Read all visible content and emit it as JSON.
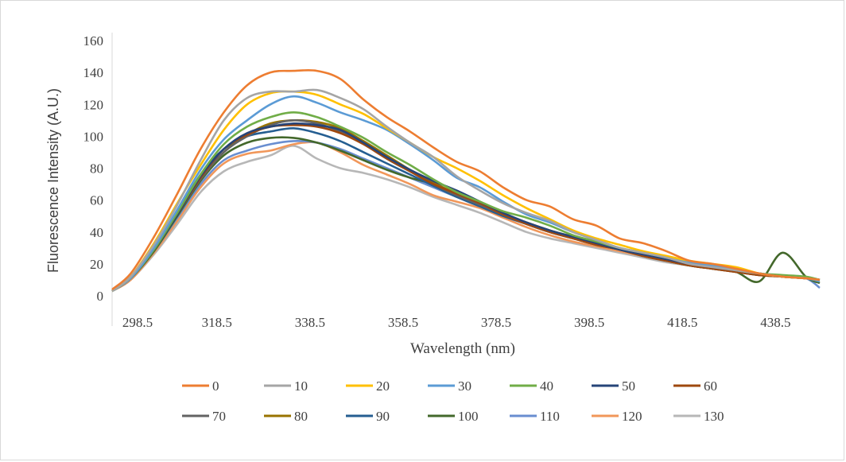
{
  "chart_data": {
    "type": "line",
    "title": "",
    "xlabel": "Wavelength (nm)",
    "ylabel": "Fluorescence  Intensity (A.U.)",
    "xlim": [
      296,
      448
    ],
    "ylim": [
      0,
      160
    ],
    "yticks": [
      "0",
      "20",
      "40",
      "60",
      "80",
      "100",
      "120",
      "140",
      "160"
    ],
    "xticks": [
      "298.5",
      "318.5",
      "338.5",
      "358.5",
      "378.5",
      "398.5",
      "418.5",
      "438.5"
    ],
    "grid": false,
    "legend_position": "bottom",
    "x": [
      296,
      300,
      305,
      310,
      315,
      320,
      325,
      330,
      335,
      340,
      345,
      350,
      355,
      360,
      365,
      370,
      375,
      380,
      385,
      390,
      395,
      400,
      405,
      410,
      415,
      420,
      425,
      430,
      435,
      440,
      445,
      448
    ],
    "series": [
      {
        "name": "0",
        "color": "#ED7D31",
        "values": [
          4,
          14,
          37,
          64,
          92,
          115,
          132,
          140,
          141,
          141,
          136,
          123,
          112,
          103,
          93,
          84,
          78,
          68,
          60,
          56,
          48,
          44,
          36,
          33,
          28,
          22,
          20,
          17,
          14,
          12,
          11,
          10
        ]
      },
      {
        "name": "10",
        "color": "#A5A5A5",
        "values": [
          3,
          12,
          32,
          57,
          85,
          110,
          124,
          128,
          128,
          129,
          124,
          117,
          106,
          96,
          87,
          75,
          66,
          58,
          52,
          47,
          40,
          35,
          30,
          27,
          24,
          20,
          18,
          16,
          14,
          12,
          11,
          10
        ]
      },
      {
        "name": "20",
        "color": "#FFC000",
        "values": [
          3,
          12,
          33,
          58,
          82,
          104,
          120,
          127,
          128,
          126,
          120,
          114,
          105,
          96,
          87,
          80,
          72,
          63,
          55,
          48,
          41,
          36,
          32,
          28,
          25,
          22,
          20,
          18,
          14,
          12,
          11,
          10
        ]
      },
      {
        "name": "30",
        "color": "#5B9BD5",
        "values": [
          3,
          11,
          30,
          54,
          79,
          98,
          110,
          120,
          125,
          121,
          115,
          110,
          104,
          95,
          85,
          74,
          68,
          59,
          51,
          46,
          40,
          35,
          30,
          27,
          24,
          21,
          19,
          16,
          14,
          12,
          11,
          9
        ]
      },
      {
        "name": "40",
        "color": "#70AD47",
        "values": [
          3,
          11,
          29,
          52,
          76,
          95,
          106,
          112,
          115,
          112,
          106,
          99,
          90,
          82,
          73,
          65,
          59,
          53,
          49,
          44,
          38,
          34,
          30,
          27,
          24,
          21,
          19,
          16,
          14,
          13,
          12,
          10
        ]
      },
      {
        "name": "50",
        "color": "#264478",
        "values": [
          3,
          11,
          29,
          51,
          75,
          92,
          102,
          106,
          108,
          107,
          104,
          96,
          87,
          79,
          72,
          66,
          59,
          52,
          46,
          41,
          37,
          33,
          29,
          26,
          23,
          20,
          18,
          16,
          14,
          12,
          11,
          10
        ]
      },
      {
        "name": "60",
        "color": "#9E480E",
        "values": [
          3,
          11,
          29,
          51,
          74,
          92,
          101,
          106,
          107,
          106,
          102,
          95,
          86,
          78,
          70,
          64,
          58,
          51,
          45,
          40,
          36,
          32,
          29,
          25,
          22,
          19,
          17,
          15,
          13,
          12,
          11,
          10
        ]
      },
      {
        "name": "70",
        "color": "#636363",
        "values": [
          3,
          11,
          29,
          51,
          73,
          90,
          100,
          107,
          110,
          108,
          103,
          96,
          86,
          78,
          70,
          63,
          57,
          51,
          45,
          40,
          36,
          32,
          29,
          25,
          22,
          19,
          17,
          15,
          13,
          12,
          11,
          10
        ]
      },
      {
        "name": "80",
        "color": "#997300",
        "values": [
          3,
          11,
          29,
          51,
          73,
          90,
          101,
          108,
          110,
          109,
          105,
          97,
          88,
          79,
          71,
          64,
          58,
          51,
          46,
          41,
          37,
          33,
          29,
          26,
          23,
          20,
          18,
          16,
          14,
          12,
          11,
          10
        ]
      },
      {
        "name": "90",
        "color": "#255E91",
        "values": [
          3,
          11,
          29,
          52,
          76,
          92,
          100,
          103,
          105,
          102,
          97,
          90,
          83,
          76,
          69,
          62,
          56,
          50,
          45,
          40,
          36,
          32,
          29,
          26,
          23,
          20,
          18,
          16,
          14,
          12,
          11,
          10
        ]
      },
      {
        "name": "100",
        "color": "#43682B",
        "values": [
          3,
          11,
          28,
          50,
          72,
          88,
          96,
          99,
          99,
          96,
          91,
          85,
          79,
          74,
          70,
          64,
          58,
          51,
          45,
          40,
          36,
          32,
          29,
          25,
          22,
          19,
          17,
          15,
          9,
          27,
          12,
          8
        ]
      },
      {
        "name": "110",
        "color": "#698ED0",
        "values": [
          3,
          11,
          28,
          49,
          70,
          85,
          91,
          95,
          97,
          96,
          92,
          86,
          80,
          74,
          68,
          62,
          57,
          51,
          46,
          41,
          37,
          33,
          29,
          26,
          23,
          20,
          18,
          16,
          14,
          12,
          11,
          5
        ]
      },
      {
        "name": "120",
        "color": "#F1975A",
        "values": [
          3,
          10,
          27,
          47,
          68,
          83,
          89,
          91,
          95,
          96,
          90,
          82,
          76,
          70,
          63,
          59,
          55,
          49,
          43,
          38,
          34,
          31,
          28,
          25,
          22,
          19,
          17,
          15,
          13,
          12,
          11,
          10
        ]
      },
      {
        "name": "130",
        "color": "#B7B7B7",
        "values": [
          3,
          10,
          26,
          45,
          65,
          78,
          84,
          88,
          94,
          86,
          80,
          77,
          73,
          68,
          62,
          57,
          52,
          46,
          40,
          36,
          33,
          30,
          27,
          24,
          21,
          19,
          17,
          15,
          13,
          12,
          11,
          10
        ]
      }
    ]
  }
}
